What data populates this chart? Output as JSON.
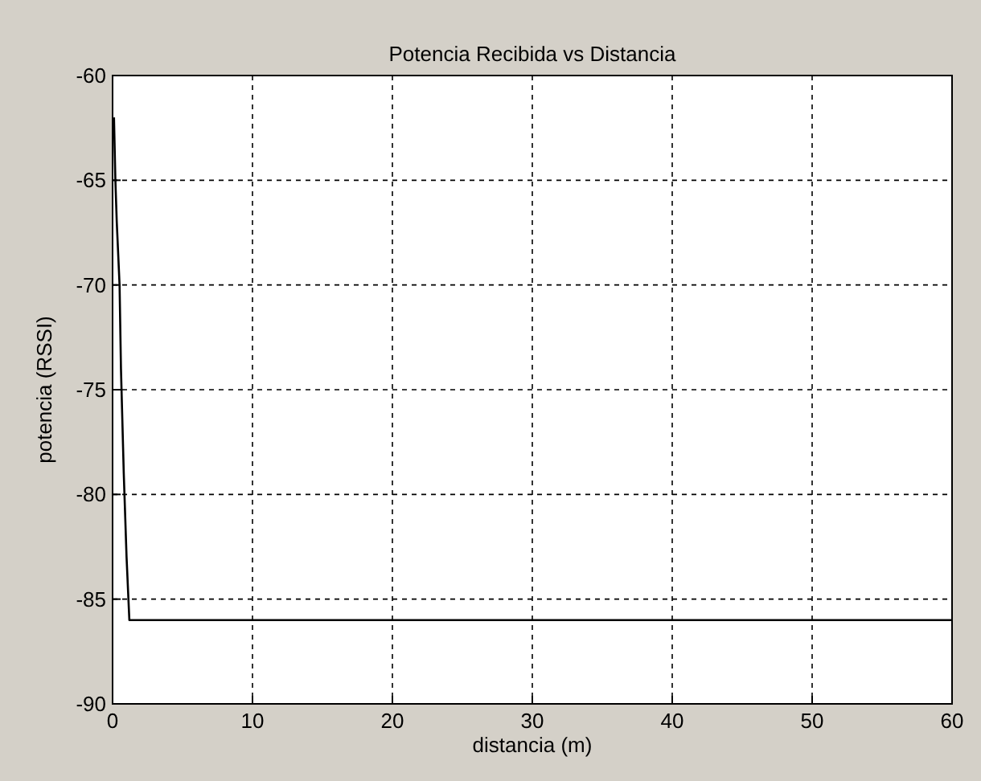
{
  "chart_data": {
    "type": "line",
    "title": "Potencia Recibida vs Distancia",
    "xlabel": "distancia (m)",
    "ylabel": "potencia (RSSI)",
    "series": [
      {
        "color": "#000000",
        "x": [
          0.1,
          0.2,
          0.3,
          0.5,
          0.6,
          0.8,
          1,
          1.2,
          60
        ],
        "values": [
          -62,
          -65,
          -67,
          -70,
          -74,
          -79,
          -83,
          -86,
          -86
        ]
      }
    ],
    "xlim": [
      0,
      60
    ],
    "xticks": [
      0,
      10,
      20,
      30,
      40,
      50,
      60
    ],
    "ylim": [
      -90,
      -60
    ],
    "yticks": [
      -90,
      -85,
      -80,
      -75,
      -70,
      -65,
      -60
    ],
    "grid": true
  }
}
